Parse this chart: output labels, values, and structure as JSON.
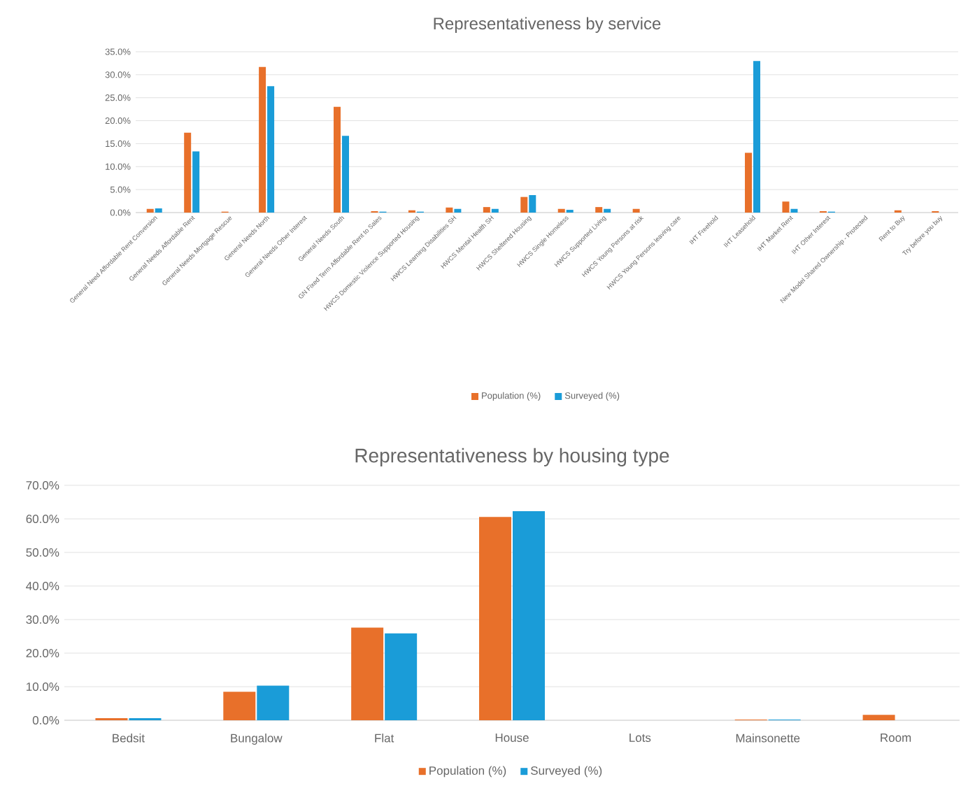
{
  "chart_data": [
    {
      "type": "bar",
      "title": "Representativeness by service",
      "categories": [
        "General Need Affordable Rent Conversion",
        "General Needs Affordable Rent",
        "General Needs Mortgage Rescue",
        "General Needs North",
        "General Needs Other Interest",
        "General Needs South",
        "GN Fixed Term Affordable Rent to Sales",
        "HWCS Domestic Violence Supported Housing",
        "HWCS Learning Disabilities SH",
        "HWCS Mental Health SH",
        "HWCS Sheltered Housing",
        "HWCS Single Homeless",
        "HWCS Supported Living",
        "HWCS Young Persons at risk",
        "HWCS Young Persons leaving care",
        "IHT Freehold",
        "IHT Leasehold",
        "IHT Market Rent",
        "IHT Other Interest",
        "New Model Shared Ownership - Protected",
        "Rent to Buy",
        "Try before you buy"
      ],
      "series": [
        {
          "name": "Population (%)",
          "color": "#e8702a",
          "values": [
            0.8,
            17.4,
            0.2,
            31.7,
            0.0,
            23.0,
            0.3,
            0.5,
            1.1,
            1.2,
            3.4,
            0.8,
            1.2,
            0.8,
            0.0,
            0.0,
            13.0,
            2.4,
            0.3,
            0.0,
            0.5,
            0.3
          ]
        },
        {
          "name": "Surveyed (%)",
          "color": "#1a9cd8",
          "values": [
            0.9,
            13.3,
            0.0,
            27.5,
            0.0,
            16.7,
            0.2,
            0.2,
            0.8,
            0.8,
            3.8,
            0.6,
            0.8,
            0.0,
            0.0,
            0.0,
            33.0,
            0.8,
            0.2,
            0.0,
            0.0,
            0.0
          ]
        }
      ],
      "ylim": [
        0,
        35
      ],
      "yticks": [
        {
          "value": 0,
          "label": "0.0%"
        },
        {
          "value": 5,
          "label": "5.0%"
        },
        {
          "value": 10,
          "label": "10.0%"
        },
        {
          "value": 15,
          "label": "15.0%"
        },
        {
          "value": 20,
          "label": "20.0%"
        },
        {
          "value": 25,
          "label": "25.0%"
        },
        {
          "value": 30,
          "label": "30.0%"
        },
        {
          "value": 35,
          "label": "35.0%"
        }
      ],
      "grid": "y",
      "legend": "bottom"
    },
    {
      "type": "bar",
      "title": "Representativeness by housing type",
      "categories": [
        "Bedsit",
        "Bungalow",
        "Flat",
        "House",
        "Lots",
        "Mainsonette",
        "Room"
      ],
      "series": [
        {
          "name": "Population (%)",
          "color": "#e8702a",
          "values": [
            0.6,
            8.5,
            27.6,
            60.6,
            0.0,
            0.2,
            1.6
          ]
        },
        {
          "name": "Surveyed (%)",
          "color": "#1a9cd8",
          "values": [
            0.6,
            10.3,
            25.9,
            62.3,
            0.0,
            0.2,
            0.0
          ]
        }
      ],
      "ylim": [
        0,
        70
      ],
      "yticks": [
        {
          "value": 0,
          "label": "0.0%"
        },
        {
          "value": 10,
          "label": "10.0%"
        },
        {
          "value": 20,
          "label": "20.0%"
        },
        {
          "value": 30,
          "label": "30.0%"
        },
        {
          "value": 40,
          "label": "40.0%"
        },
        {
          "value": 50,
          "label": "50.0%"
        },
        {
          "value": 60,
          "label": "60.0%"
        },
        {
          "value": 70,
          "label": "70.0%"
        }
      ],
      "grid": "y",
      "legend": "bottom"
    }
  ]
}
